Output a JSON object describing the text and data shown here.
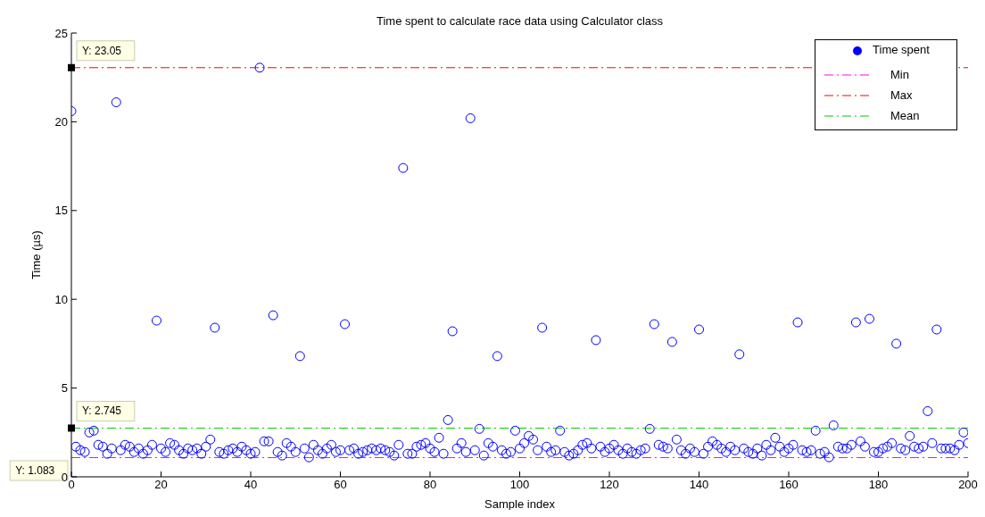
{
  "chart_data": {
    "type": "scatter",
    "title": "Time spent to calculate race data using Calculator class",
    "xlabel": "Sample index",
    "ylabel": "Time (µs)",
    "x": [
      0,
      1,
      2,
      3,
      4,
      5,
      6,
      7,
      8,
      9,
      10,
      11,
      12,
      13,
      14,
      15,
      16,
      17,
      18,
      19,
      20,
      21,
      22,
      23,
      24,
      25,
      26,
      27,
      28,
      29,
      30,
      31,
      32,
      33,
      34,
      35,
      36,
      37,
      38,
      39,
      40,
      41,
      42,
      43,
      44,
      45,
      46,
      47,
      48,
      49,
      50,
      51,
      52,
      53,
      54,
      55,
      56,
      57,
      58,
      59,
      60,
      61,
      62,
      63,
      64,
      65,
      66,
      67,
      68,
      69,
      70,
      71,
      72,
      73,
      74,
      75,
      76,
      77,
      78,
      79,
      80,
      81,
      82,
      83,
      84,
      85,
      86,
      87,
      88,
      89,
      90,
      91,
      92,
      93,
      94,
      95,
      96,
      97,
      98,
      99,
      100,
      101,
      102,
      103,
      104,
      105,
      106,
      107,
      108,
      109,
      110,
      111,
      112,
      113,
      114,
      115,
      116,
      117,
      118,
      119,
      120,
      121,
      122,
      123,
      124,
      125,
      126,
      127,
      128,
      129,
      130,
      131,
      132,
      133,
      134,
      135,
      136,
      137,
      138,
      139,
      140,
      141,
      142,
      143,
      144,
      145,
      146,
      147,
      148,
      149,
      150,
      151,
      152,
      153,
      154,
      155,
      156,
      157,
      158,
      159,
      160,
      161,
      162,
      163,
      164,
      165,
      166,
      167,
      168,
      169,
      170,
      171,
      172,
      173,
      174,
      175,
      176,
      177,
      178,
      179,
      180,
      181,
      182,
      183,
      184,
      185,
      186,
      187,
      188,
      189,
      190,
      191,
      192,
      193,
      194,
      195,
      196,
      197,
      198,
      199,
      200
    ],
    "series": [
      {
        "name": "Time spent",
        "color": "#0000ff",
        "values": [
          20.6,
          1.7,
          1.5,
          1.4,
          2.5,
          2.6,
          1.8,
          1.7,
          1.3,
          1.6,
          21.1,
          1.5,
          1.8,
          1.7,
          1.4,
          1.6,
          1.3,
          1.5,
          1.8,
          8.8,
          1.6,
          1.4,
          1.9,
          1.8,
          1.5,
          1.3,
          1.6,
          1.5,
          1.6,
          1.3,
          1.7,
          2.1,
          8.4,
          1.4,
          1.3,
          1.5,
          1.6,
          1.4,
          1.7,
          1.5,
          1.3,
          1.4,
          23.05,
          2.0,
          2.0,
          9.1,
          1.4,
          1.2,
          1.9,
          1.7,
          1.4,
          6.8,
          1.6,
          1.1,
          1.8,
          1.5,
          1.3,
          1.6,
          1.8,
          1.4,
          1.5,
          8.6,
          1.5,
          1.6,
          1.3,
          1.4,
          1.5,
          1.6,
          1.5,
          1.6,
          1.5,
          1.4,
          1.2,
          1.8,
          17.4,
          1.3,
          1.3,
          1.7,
          1.8,
          1.9,
          1.6,
          1.4,
          2.2,
          1.3,
          3.2,
          8.2,
          1.6,
          1.9,
          1.4,
          20.2,
          1.5,
          2.7,
          1.2,
          1.9,
          1.7,
          6.8,
          1.5,
          1.3,
          1.4,
          2.6,
          1.6,
          1.9,
          2.3,
          2.1,
          1.5,
          8.4,
          1.7,
          1.4,
          1.5,
          2.6,
          1.4,
          1.2,
          1.3,
          1.5,
          1.8,
          1.9,
          1.6,
          7.7,
          1.7,
          1.4,
          1.6,
          1.8,
          1.5,
          1.3,
          1.6,
          1.4,
          1.3,
          1.5,
          1.6,
          2.7,
          8.6,
          1.8,
          1.7,
          1.6,
          7.6,
          2.1,
          1.5,
          1.3,
          1.6,
          1.4,
          8.3,
          1.3,
          1.7,
          2.0,
          1.8,
          1.6,
          1.4,
          1.7,
          1.5,
          6.9,
          1.6,
          1.4,
          1.3,
          1.6,
          1.2,
          1.8,
          1.5,
          2.2,
          1.7,
          1.4,
          1.6,
          1.8,
          8.7,
          1.5,
          1.4,
          1.5,
          2.6,
          1.3,
          1.4,
          1.1,
          2.9,
          1.7,
          1.6,
          1.6,
          1.8,
          8.7,
          2.0,
          1.7,
          8.9,
          1.4,
          1.4,
          1.6,
          1.7,
          1.9,
          7.5,
          1.6,
          1.5,
          2.3,
          1.7,
          1.6,
          1.7,
          3.7,
          1.9,
          8.3,
          1.6,
          1.6,
          1.6,
          1.5,
          1.8,
          2.5,
          1.9
        ]
      }
    ],
    "ref_lines": [
      {
        "axis": "y",
        "value": 1.083,
        "label": "Min",
        "color": "#ff00ff",
        "line_style": "dashed"
      },
      {
        "axis": "y",
        "value": 23.05,
        "label": "Max",
        "color": "#ff0000",
        "line_style": "dashed"
      },
      {
        "axis": "y",
        "value": 2.745,
        "label": "Mean",
        "color": "#00cc00",
        "line_style": "dashed"
      }
    ],
    "annotations": [
      {
        "text": "Y: 23.05",
        "y": 23.05
      },
      {
        "text": "Y: 2.745",
        "y": 2.745
      },
      "Y: 1.083"
    ],
    "xlim": [
      0,
      200
    ],
    "xticks": [
      0,
      20,
      40,
      60,
      80,
      100,
      120,
      140,
      160,
      180,
      200
    ],
    "ylim": [
      0,
      25
    ],
    "yticks": [
      0,
      5,
      10,
      15,
      20,
      25
    ],
    "marker": "circle",
    "grid": false,
    "legend": "top right"
  }
}
